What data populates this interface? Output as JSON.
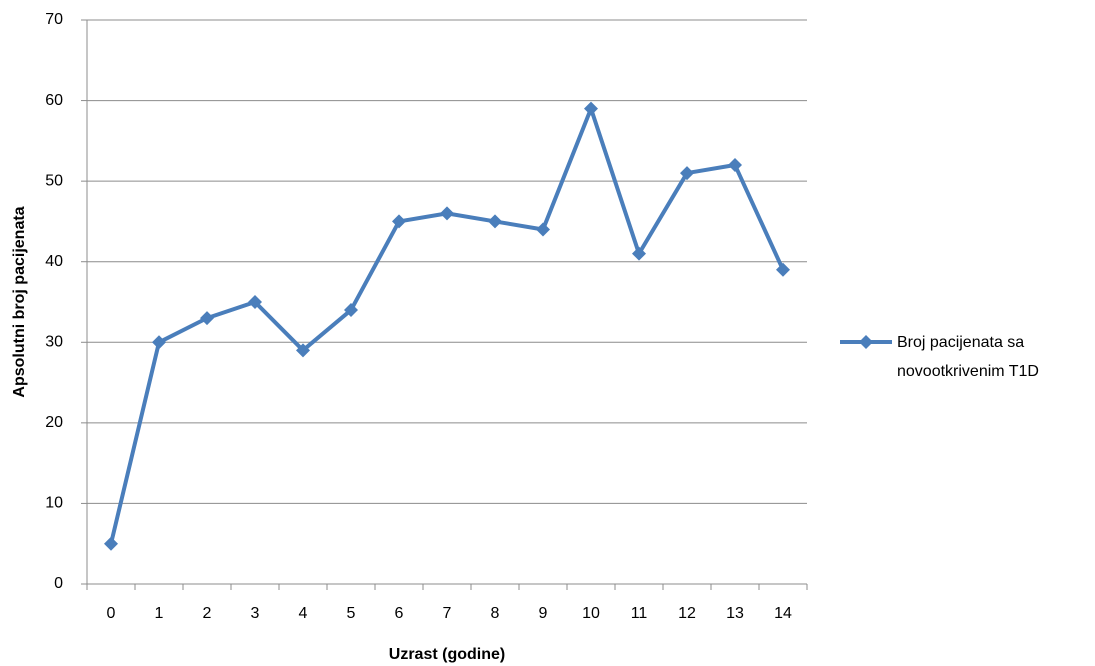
{
  "chart_data": {
    "type": "line",
    "x_label": "Uzrast (godine)",
    "y_label": "Apsolutni broj pacijenata",
    "categories": [
      "0",
      "1",
      "2",
      "3",
      "4",
      "5",
      "6",
      "7",
      "8",
      "9",
      "10",
      "11",
      "12",
      "13",
      "14"
    ],
    "series": [
      {
        "name": "Broj pacijenata sa novootkrivenim T1D",
        "color": "#4a7ebb",
        "values": [
          5,
          30,
          33,
          35,
          29,
          34,
          45,
          46,
          45,
          44,
          59,
          41,
          51,
          52,
          39
        ]
      }
    ],
    "ylim": [
      0,
      70
    ],
    "yticks": [
      0,
      10,
      20,
      30,
      40,
      50,
      60,
      70
    ],
    "grid": true,
    "legend": "right"
  }
}
